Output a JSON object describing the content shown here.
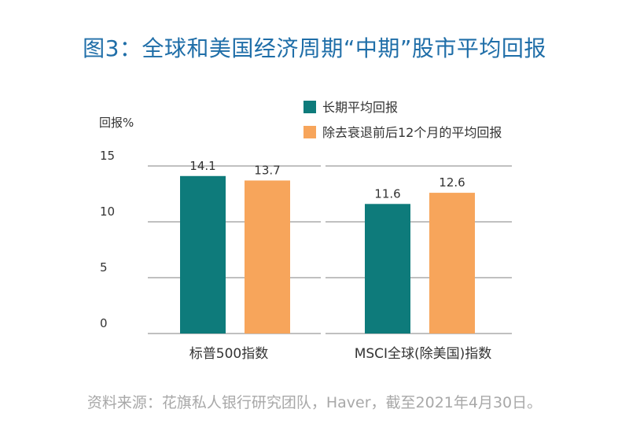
{
  "title": "图3：全球和美国经济周期“中期”股市平均回报",
  "source": "资料来源：花旗私人银行研究团队，Haver，截至2021年4月30日。",
  "colors": {
    "title": "#1f6ea8",
    "series1": "#0e7b7b",
    "series2": "#f7a55b",
    "grid": "#9a9a9a",
    "source": "#a8a8a8"
  },
  "chart_data": {
    "type": "bar",
    "ylabel": "回报%",
    "ylim": [
      0,
      15
    ],
    "yticks": [
      "0",
      "5",
      "10",
      "15"
    ],
    "grid": true,
    "legend_position": "top",
    "categories": [
      "标普500指数",
      "MSCI全球(除美国)指数"
    ],
    "series": [
      {
        "name": "长期平均回报",
        "values": [
          14.1,
          11.6
        ],
        "labels": [
          "14.1",
          "11.6"
        ]
      },
      {
        "name": "除去衰退前后12个月的平均回报",
        "values": [
          13.7,
          12.6
        ],
        "labels": [
          "13.7",
          "12.6"
        ]
      }
    ]
  }
}
